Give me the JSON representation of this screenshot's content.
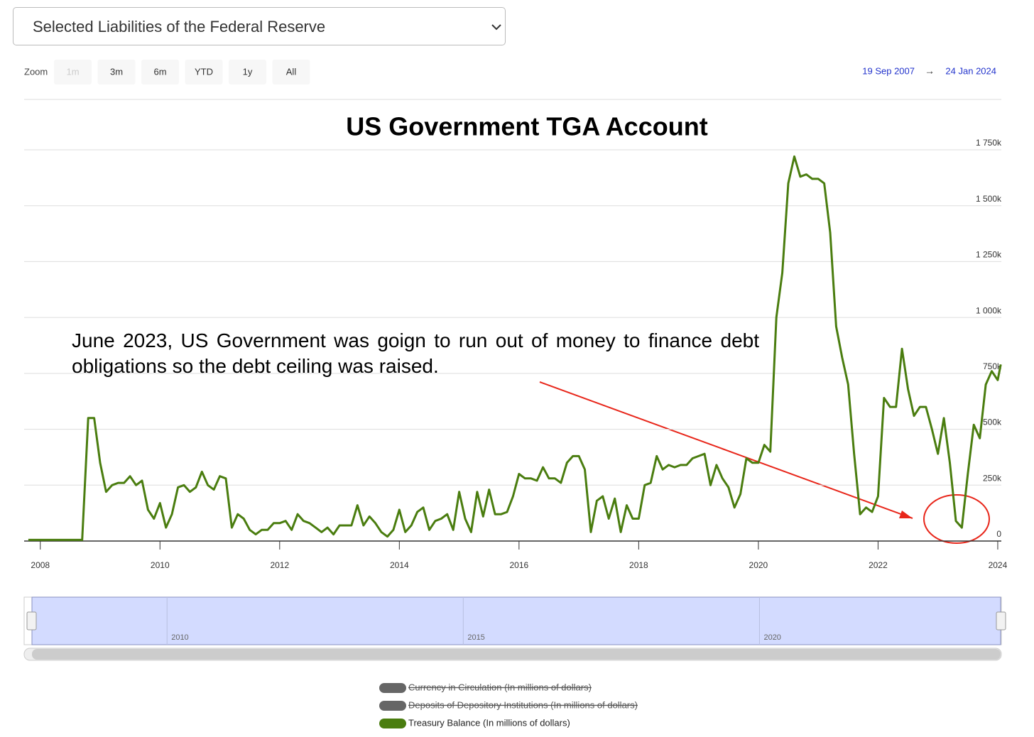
{
  "selector": {
    "label": "Selected Liabilities of the Federal Reserve"
  },
  "range_selector": {
    "zoom_label": "Zoom",
    "buttons": [
      "1m",
      "3m",
      "6m",
      "YTD",
      "1y",
      "All"
    ],
    "disabled": [
      "1m"
    ],
    "from": "19 Sep 2007",
    "separator": "→",
    "to": "24 Jan 2024"
  },
  "annotation": "June 2023, US Government was goign to run out of money to finance debt obligations so the debt ceiling was raised.",
  "chart_data": {
    "type": "line",
    "title": "US Government TGA Account",
    "x": [
      2007.8,
      2007.9,
      2008.0,
      2008.1,
      2008.2,
      2008.3,
      2008.4,
      2008.5,
      2008.6,
      2008.7,
      2008.8,
      2008.9,
      2009.0,
      2009.1,
      2009.2,
      2009.3,
      2009.4,
      2009.5,
      2009.6,
      2009.7,
      2009.8,
      2009.9,
      2010.0,
      2010.1,
      2010.2,
      2010.3,
      2010.4,
      2010.5,
      2010.6,
      2010.7,
      2010.8,
      2010.9,
      2011.0,
      2011.1,
      2011.2,
      2011.3,
      2011.4,
      2011.5,
      2011.6,
      2011.7,
      2011.8,
      2011.9,
      2012.0,
      2012.1,
      2012.2,
      2012.3,
      2012.4,
      2012.5,
      2012.6,
      2012.7,
      2012.8,
      2012.9,
      2013.0,
      2013.1,
      2013.2,
      2013.3,
      2013.4,
      2013.5,
      2013.6,
      2013.7,
      2013.8,
      2013.9,
      2014.0,
      2014.1,
      2014.2,
      2014.3,
      2014.4,
      2014.5,
      2014.6,
      2014.7,
      2014.8,
      2014.9,
      2015.0,
      2015.1,
      2015.2,
      2015.3,
      2015.4,
      2015.5,
      2015.6,
      2015.7,
      2015.8,
      2015.9,
      2016.0,
      2016.1,
      2016.2,
      2016.3,
      2016.4,
      2016.5,
      2016.6,
      2016.7,
      2016.8,
      2016.9,
      2017.0,
      2017.1,
      2017.2,
      2017.3,
      2017.4,
      2017.5,
      2017.6,
      2017.7,
      2017.8,
      2017.9,
      2018.0,
      2018.1,
      2018.2,
      2018.3,
      2018.4,
      2018.5,
      2018.6,
      2018.7,
      2018.8,
      2018.9,
      2019.0,
      2019.1,
      2019.2,
      2019.3,
      2019.4,
      2019.5,
      2019.6,
      2019.7,
      2019.8,
      2019.9,
      2020.0,
      2020.1,
      2020.2,
      2020.3,
      2020.4,
      2020.5,
      2020.6,
      2020.7,
      2020.8,
      2020.9,
      2021.0,
      2021.1,
      2021.2,
      2021.3,
      2021.4,
      2021.5,
      2021.6,
      2021.7,
      2021.8,
      2021.9,
      2022.0,
      2022.1,
      2022.2,
      2022.3,
      2022.4,
      2022.5,
      2022.6,
      2022.7,
      2022.8,
      2022.9,
      2023.0,
      2023.1,
      2023.2,
      2023.3,
      2023.4,
      2023.5,
      2023.6,
      2023.7,
      2023.8,
      2023.9,
      2024.0,
      2024.05
    ],
    "series": [
      {
        "name": "Currency in Circulation (In millions of dollars)",
        "color": "#666666",
        "visible": false
      },
      {
        "name": "Deposits of Depository Institutions (In millions of dollars)",
        "color": "#666666",
        "visible": false
      },
      {
        "name": "Treasury Balance (In millions of dollars)",
        "color": "#4a7d0f",
        "visible": true,
        "values": [
          5000,
          5000,
          5000,
          5000,
          5000,
          5000,
          5000,
          5000,
          5000,
          5000,
          550000,
          550000,
          350000,
          220000,
          250000,
          260000,
          260000,
          290000,
          250000,
          270000,
          140000,
          100000,
          170000,
          60000,
          120000,
          240000,
          250000,
          220000,
          240000,
          310000,
          250000,
          230000,
          290000,
          280000,
          60000,
          120000,
          100000,
          50000,
          30000,
          50000,
          50000,
          80000,
          80000,
          90000,
          50000,
          120000,
          90000,
          80000,
          60000,
          40000,
          60000,
          30000,
          70000,
          70000,
          70000,
          160000,
          70000,
          110000,
          80000,
          40000,
          20000,
          50000,
          140000,
          40000,
          70000,
          130000,
          150000,
          50000,
          90000,
          100000,
          120000,
          50000,
          220000,
          100000,
          40000,
          220000,
          110000,
          230000,
          120000,
          120000,
          130000,
          200000,
          300000,
          280000,
          280000,
          270000,
          330000,
          280000,
          280000,
          260000,
          350000,
          380000,
          380000,
          320000,
          40000,
          180000,
          200000,
          100000,
          190000,
          40000,
          160000,
          100000,
          100000,
          250000,
          260000,
          380000,
          320000,
          340000,
          330000,
          340000,
          340000,
          370000,
          380000,
          390000,
          250000,
          340000,
          280000,
          240000,
          150000,
          210000,
          370000,
          350000,
          350000,
          430000,
          400000,
          1000000,
          1200000,
          1600000,
          1720000,
          1630000,
          1640000,
          1620000,
          1620000,
          1600000,
          1380000,
          960000,
          820000,
          700000,
          390000,
          120000,
          150000,
          130000,
          200000,
          640000,
          600000,
          600000,
          860000,
          680000,
          560000,
          600000,
          600000,
          500000,
          390000,
          550000,
          350000,
          90000,
          60000,
          300000,
          520000,
          460000,
          700000,
          760000,
          720000,
          790000
        ]
      }
    ],
    "xlim": [
      2007.73,
      2024.06
    ],
    "xticks": [
      2008,
      2010,
      2012,
      2014,
      2016,
      2018,
      2020,
      2022,
      2024
    ],
    "ylim": [
      0,
      1750000
    ],
    "yticks": [
      0,
      {
        "value": 250000,
        "label": "250k"
      },
      {
        "value": 500000,
        "label": "500k"
      },
      {
        "value": 750000,
        "label": "750k"
      },
      {
        "value": 1000000,
        "label": "1 000k"
      },
      {
        "value": 1250000,
        "label": "1 250k"
      },
      {
        "value": 1500000,
        "label": "1 500k"
      },
      {
        "value": 1750000,
        "label": "1 750k"
      }
    ],
    "grid": true,
    "navigator": {
      "xlim": [
        2007.72,
        2024.07
      ],
      "xticks": [
        2010,
        2015,
        2020
      ]
    }
  }
}
